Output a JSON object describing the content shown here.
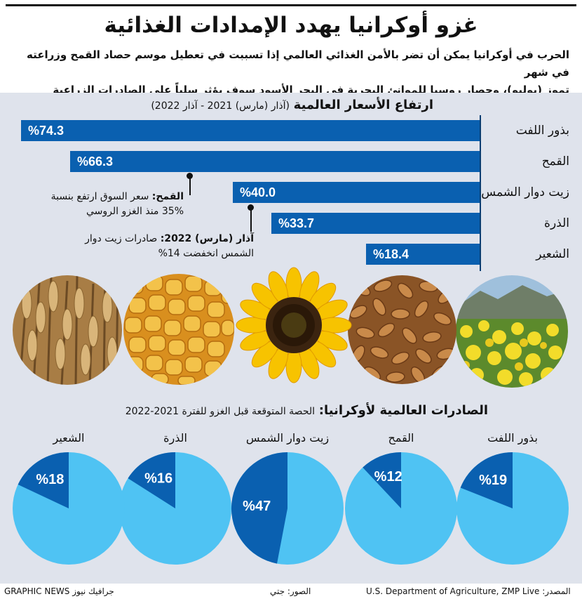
{
  "header": {
    "title": "غزو أوكرانيا يهدد الإمدادات الغذائية",
    "intro_line1": "الحرب في أوكرانيا يمكن أن تضر بالأمن الغذائي العالمي إذا تسببت في تعطيل موسم حصاد القمح وزراعته في شهر",
    "intro_line2": "تموز (يوليو)، وحصار روسيا للموانئ البحرية في البحر الأسود سوف يؤثر سلباً على الصادرات الزراعية الأوكرانية"
  },
  "prices_section": {
    "title": "ارتفاع الأسعار العالمية",
    "subtitle": "(آذار (مارس) 2021 - آذار 2022)"
  },
  "notes": [
    {
      "bold": "القمح:",
      "line1": "سعر السوق ارتفع بنسبة",
      "line2": "35% منذ الغزو الروسي"
    },
    {
      "bold": "آذار (مارس) 2022:",
      "line1": "صادرات زيت دوار",
      "line2": "الشمس انخفضت 14%"
    }
  ],
  "photos": [
    {
      "name": "rapeseed-field-photo",
      "caption": ""
    },
    {
      "name": "wheat-grains-photo",
      "caption": ""
    },
    {
      "name": "sunflower-photo",
      "caption": ""
    },
    {
      "name": "corn-kernels-photo",
      "caption": ""
    },
    {
      "name": "barley-stalks-photo",
      "caption": ""
    }
  ],
  "exports_section": {
    "title": "الصادرات العالمية لأوكرانيا:",
    "subtitle": "الحصة المتوقعة قبل الغزو للفترة 2021-2022"
  },
  "footer": {
    "source": "المصدر: U.S. Department of Agriculture, ZMP Live",
    "photos": "الصور: جتي",
    "credit": "GRAPHIC NEWS جرافيك نيوز"
  },
  "colors": {
    "bar": "#0a60b0",
    "pie_share": "#0a60b0",
    "pie_rest": "#4fc3f3",
    "panel": "#dfe3ec"
  },
  "chart_data": [
    {
      "type": "bar",
      "orientation": "horizontal",
      "title": "ارتفاع الأسعار العالمية",
      "subtitle": "(آذار (مارس) 2021 - آذار 2022)",
      "unit": "%",
      "categories": [
        "بذور اللفت",
        "القمح",
        "زيت دوار الشمس",
        "الذرة",
        "الشعير"
      ],
      "values": [
        74.3,
        66.3,
        40.0,
        33.7,
        18.4
      ],
      "labels": [
        "%74.3",
        "%66.3",
        "%40.0",
        "%33.7",
        "%18.4"
      ],
      "xlim": [
        0,
        74.3
      ]
    },
    {
      "type": "pie",
      "title": "الصادرات العالمية لأوكرانيا:",
      "subtitle": "الحصة المتوقعة قبل الغزو للفترة 2021-2022",
      "unit": "%",
      "categories": [
        "بذور اللفت",
        "القمح",
        "زيت دوار الشمس",
        "الذرة",
        "الشعير"
      ],
      "values": [
        19,
        12,
        47,
        16,
        18
      ],
      "labels": [
        "%19",
        "%12",
        "%47",
        "%16",
        "%18"
      ]
    }
  ]
}
